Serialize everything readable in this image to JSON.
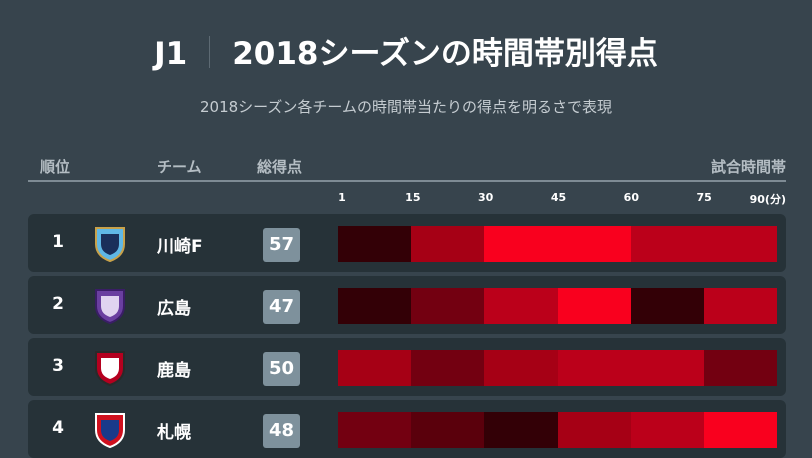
{
  "header": {
    "league": "J1",
    "title": "2018シーズンの時間帯別得点",
    "subtitle": "2018シーズン各チームの時間帯当たりの得点を明るさで表現"
  },
  "columns": {
    "rank": "順位",
    "team": "チーム",
    "total": "総得点",
    "time": "試合時間帯"
  },
  "chart_data": {
    "type": "heatmap",
    "title": "2018シーズンの時間帯別得点",
    "x_ticks": [
      "1",
      "15",
      "30",
      "45",
      "60",
      "75",
      "90(分)"
    ],
    "intervals": [
      "1-15",
      "16-30",
      "31-45",
      "46-60",
      "61-75",
      "76-90"
    ],
    "level_colors": [
      "#330006",
      "#5a000c",
      "#730011",
      "#a60015",
      "#bb001a",
      "#f9001e"
    ],
    "level_note": "relative brightness level 0 (fewest goals) to 5 (most goals)",
    "rows": [
      {
        "rank": "1",
        "team": "川崎F",
        "logo": "kawasaki-frontale-crest",
        "total": "57",
        "levels": [
          0,
          3,
          5,
          5,
          4,
          4
        ]
      },
      {
        "rank": "2",
        "team": "広島",
        "logo": "sanfrecce-hiroshima-crest",
        "total": "47",
        "levels": [
          0,
          2,
          4,
          5,
          0,
          4
        ]
      },
      {
        "rank": "3",
        "team": "鹿島",
        "logo": "kashima-antlers-crest",
        "total": "50",
        "levels": [
          3,
          2,
          3,
          4,
          4,
          2
        ]
      },
      {
        "rank": "4",
        "team": "札幌",
        "logo": "consadole-sapporo-crest",
        "total": "48",
        "levels": [
          2,
          1,
          0,
          3,
          4,
          5
        ]
      }
    ]
  }
}
